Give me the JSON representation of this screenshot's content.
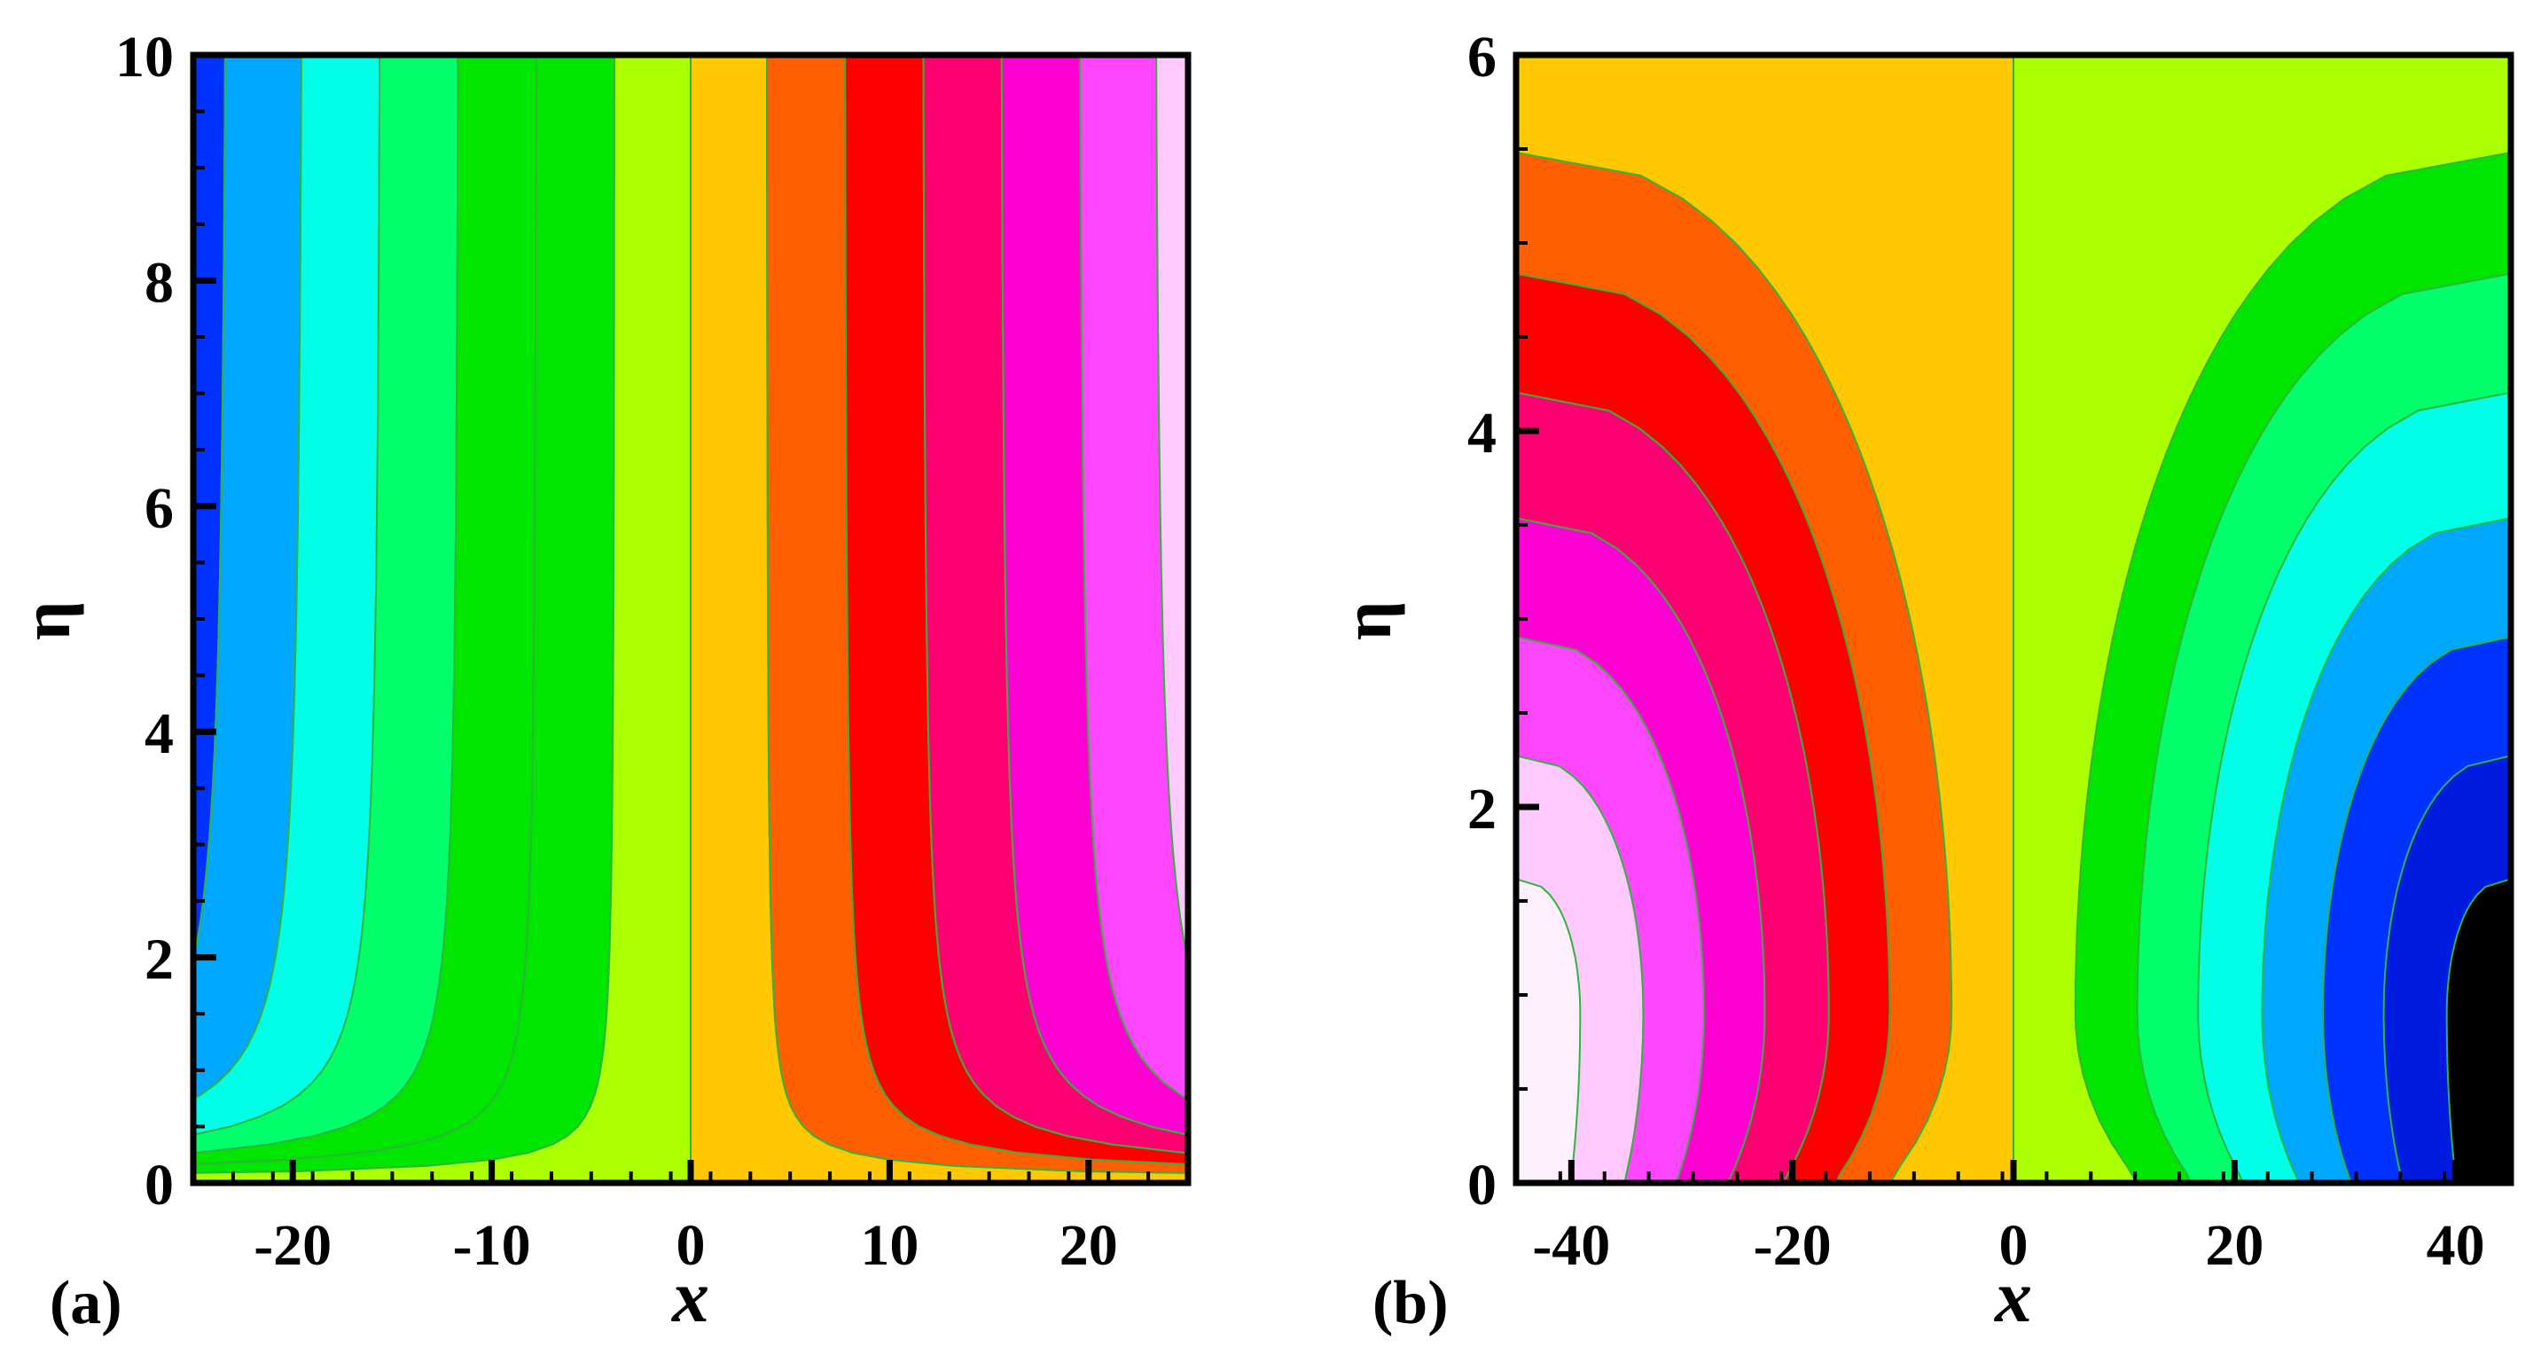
{
  "chart_data": [
    {
      "type": "contour",
      "panel_label": "(a)",
      "xlabel": "x",
      "ylabel": "η",
      "xlim": [
        -25,
        25
      ],
      "ylim": [
        0,
        10
      ],
      "x_ticks": [
        -20,
        -10,
        0,
        10,
        20
      ],
      "x_tick_labels": [
        "-20",
        "-10",
        "0",
        "10",
        "20"
      ],
      "y_ticks": [
        0,
        2,
        4,
        6,
        8,
        10
      ],
      "y_tick_labels": [
        "0",
        "2",
        "4",
        "6",
        "8",
        "10"
      ],
      "contour_levels_x_far": [
        -23.2,
        -19.4,
        -15.5,
        -11.6,
        -7.7,
        -3.8,
        0,
        3.8,
        7.7,
        11.6,
        15.5,
        19.4,
        23.2
      ],
      "band_colors": [
        "#0033ff",
        "#00a8ff",
        "#00ffe6",
        "#00ff6a",
        "#00e600",
        "#00e600",
        "#aaff00",
        "#ffc800",
        "#ff5f00",
        "#ff0000",
        "#ff0073",
        "#ff00d2",
        "#ff46ff",
        "#ffc8ff"
      ]
    },
    {
      "type": "contour",
      "panel_label": "(b)",
      "xlabel": "x",
      "ylabel": "η",
      "xlim": [
        -45,
        45
      ],
      "ylim": [
        0,
        6
      ],
      "x_ticks": [
        -40,
        -20,
        0,
        20,
        40
      ],
      "x_tick_labels": [
        "-40",
        "-20",
        "0",
        "20",
        "40"
      ],
      "y_ticks": [
        0,
        2,
        4,
        6
      ],
      "y_tick_labels": [
        "0",
        "2",
        "4",
        "6"
      ],
      "contour_levels_x_at_eta_1": [
        -39.2,
        -33.5,
        -28,
        -22.5,
        -16.7,
        -11.2,
        -5.6,
        0,
        5.6,
        11.2,
        16.7,
        22.5,
        28,
        33.5,
        39.2
      ],
      "band_colors_left_to_right": [
        "#fff0ff",
        "#ffc8ff",
        "#ff46ff",
        "#ff00d2",
        "#ff0073",
        "#ff0000",
        "#ff5f00",
        "#ffc800",
        "#aaff00",
        "#00e600",
        "#00ff6a",
        "#00ffe6",
        "#00a8ff",
        "#0033ff",
        "#001be0"
      ]
    }
  ],
  "colors": {
    "contour_line": "#2fb53a",
    "frame": "#000000",
    "background": "#ffffff"
  }
}
